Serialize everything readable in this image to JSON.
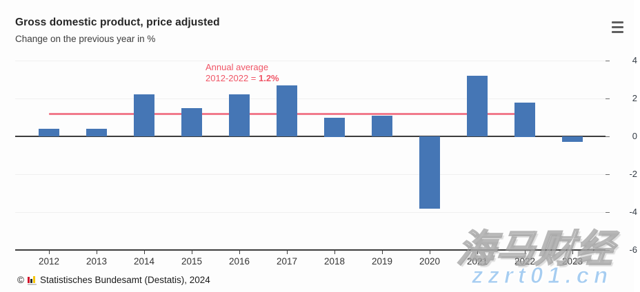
{
  "header": {
    "title": "Gross domestic product, price adjusted",
    "subtitle": "Change on the previous year in %",
    "menu_icon": "hamburger-menu-icon"
  },
  "chart_data": {
    "type": "bar",
    "title": "Gross domestic product, price adjusted",
    "subtitle": "Change on the previous year in %",
    "categories": [
      "2012",
      "2013",
      "2014",
      "2015",
      "2016",
      "2017",
      "2018",
      "2019",
      "2020",
      "2021",
      "2022",
      "2023"
    ],
    "values": [
      0.4,
      0.4,
      2.2,
      1.5,
      2.2,
      2.7,
      1.0,
      1.1,
      -3.8,
      3.2,
      1.8,
      -0.3
    ],
    "ylim": [
      -6,
      4
    ],
    "yticks": [
      4,
      2,
      0,
      -2,
      -4,
      -6
    ],
    "grid": "horizontal-light",
    "axis_side": "right",
    "bar_color": "#4576b5",
    "annotation": {
      "line1": "Annual average",
      "line2_prefix": "2012-2022 = ",
      "line2_value": "1.2%",
      "text_color": "#f05566"
    },
    "average_line": {
      "value": 1.2,
      "from_category": "2012",
      "to_category": "2022",
      "color": "#f1798b"
    }
  },
  "footer": {
    "copyright_symbol": "©",
    "logo_icon": "destatis-bar-chart-icon",
    "source_text": "Statistisches Bundesamt (Destatis), 2024"
  },
  "watermark": {
    "line1": "海马财经",
    "line2": "zzrt01.cn"
  }
}
